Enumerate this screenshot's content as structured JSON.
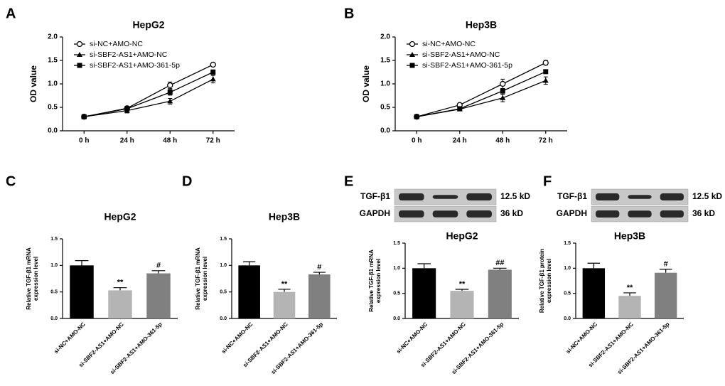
{
  "chart_data": [
    {
      "type": "line",
      "panel": "A",
      "title": "HepG2",
      "ylabel": [
        "OD value"
      ],
      "categories": [
        "0 h",
        "24 h",
        "48 h",
        "72 h"
      ],
      "ylim": [
        0,
        2
      ],
      "yticks": [
        {
          "value": 0,
          "label": "0.0"
        },
        {
          "value": 0.5,
          "label": "0.5"
        },
        {
          "value": 1,
          "label": "1.0"
        },
        {
          "value": 1.5,
          "label": "1.5"
        },
        {
          "value": 2,
          "label": "2.0"
        }
      ],
      "series": [
        {
          "name": "si-NC+AMO-NC",
          "marker": "open-circle",
          "color": "#000000",
          "values": [
            0.3,
            0.48,
            0.97,
            1.41
          ],
          "errors": [
            0.02,
            0.04,
            0.07,
            0.03
          ]
        },
        {
          "name": "si-SBF2-AS1+AMO-NC",
          "marker": "triangle",
          "color": "#000000",
          "values": [
            0.3,
            0.43,
            0.63,
            1.1
          ],
          "errors": [
            0.02,
            0.05,
            0.06,
            0.08
          ]
        },
        {
          "name": "si-SBF2-AS1+AMO-361-5p",
          "marker": "square",
          "color": "#000000",
          "values": [
            0.3,
            0.47,
            0.82,
            1.25
          ],
          "errors": [
            0.02,
            0.03,
            0.06,
            0.05
          ]
        }
      ]
    },
    {
      "type": "line",
      "panel": "B",
      "title": "Hep3B",
      "ylabel": [
        "OD value"
      ],
      "categories": [
        "0 h",
        "24 h",
        "48 h",
        "72 h"
      ],
      "ylim": [
        0,
        2
      ],
      "yticks": [
        {
          "value": 0,
          "label": "0.0"
        },
        {
          "value": 0.5,
          "label": "0.5"
        },
        {
          "value": 1,
          "label": "1.0"
        },
        {
          "value": 1.5,
          "label": "1.5"
        },
        {
          "value": 2,
          "label": "2.0"
        }
      ],
      "series": [
        {
          "name": "si-NC+AMO-NC",
          "marker": "open-circle",
          "color": "#000000",
          "values": [
            0.3,
            0.55,
            1.0,
            1.45
          ],
          "errors": [
            0.01,
            0.03,
            0.1,
            0.05
          ]
        },
        {
          "name": "si-SBF2-AS1+AMO-NC",
          "marker": "triangle",
          "color": "#000000",
          "values": [
            0.3,
            0.46,
            0.7,
            1.07
          ],
          "errors": [
            0.01,
            0.03,
            0.08,
            0.08
          ]
        },
        {
          "name": "si-SBF2-AS1+AMO-361-5p",
          "marker": "square",
          "color": "#000000",
          "values": [
            0.3,
            0.47,
            0.85,
            1.26
          ],
          "errors": [
            0.01,
            0.02,
            0.05,
            0.03
          ]
        }
      ]
    },
    {
      "type": "bar",
      "panel": "C",
      "title": "HepG2",
      "ylabel": [
        "Relative TGF-β1 mRNA",
        "expression level"
      ],
      "categories": [
        "si-NC+AMO-NC",
        "si-SBF2-AS1+AMO-NC",
        "si-SBF2-AS1+AMO-361-5p"
      ],
      "colors": [
        "#000000",
        "#b4b4b4",
        "#808080"
      ],
      "values": [
        1.0,
        0.53,
        0.85
      ],
      "errors": [
        0.09,
        0.05,
        0.05
      ],
      "annotations": [
        null,
        "**",
        "#"
      ],
      "ylim": [
        0,
        1.5
      ],
      "yticks": [
        {
          "value": 0,
          "label": "0.0"
        },
        {
          "value": 0.5,
          "label": "0.5"
        },
        {
          "value": 1,
          "label": "1.0"
        },
        {
          "value": 1.5,
          "label": "1.5"
        }
      ]
    },
    {
      "type": "bar",
      "panel": "D",
      "title": "Hep3B",
      "ylabel": [
        "Relative TGF-β1 mRNA",
        "expression level"
      ],
      "categories": [
        "si-NC+AMO-NC",
        "si-SBF2-AS1+AMO-NC",
        "si-SBF2-AS1+AMO-361-5p"
      ],
      "colors": [
        "#000000",
        "#b4b4b4",
        "#808080"
      ],
      "values": [
        1.0,
        0.5,
        0.83
      ],
      "errors": [
        0.07,
        0.05,
        0.04
      ],
      "annotations": [
        null,
        "**",
        "#"
      ],
      "ylim": [
        0,
        1.5
      ],
      "yticks": [
        {
          "value": 0,
          "label": "0.0"
        },
        {
          "value": 0.5,
          "label": "0.5"
        },
        {
          "value": 1,
          "label": "1.0"
        },
        {
          "value": 1.5,
          "label": "1.5"
        }
      ]
    },
    {
      "type": "bar",
      "panel": "E",
      "title": "HepG2",
      "ylabel": [
        "Relative TGF-β1 mRNA",
        "expression level"
      ],
      "categories": [
        "si-NC+AMO-NC",
        "si-SBF2-AS1+AMO-NC",
        "si-SBF2-AS1+AMO-361-5p"
      ],
      "colors": [
        "#000000",
        "#b4b4b4",
        "#808080"
      ],
      "values": [
        1.0,
        0.55,
        0.97
      ],
      "errors": [
        0.09,
        0.03,
        0.03
      ],
      "annotations": [
        null,
        "**",
        "##"
      ],
      "ylim": [
        0,
        1.5
      ],
      "yticks": [
        {
          "value": 0,
          "label": "0.0"
        },
        {
          "value": 0.5,
          "label": "0.5"
        },
        {
          "value": 1,
          "label": "1.0"
        },
        {
          "value": 1.5,
          "label": "1.5"
        }
      ],
      "blot": {
        "rows": [
          {
            "label": "TGF-β1",
            "size": "12.5 kD"
          },
          {
            "label": "GAPDH",
            "size": "36 kD"
          }
        ]
      }
    },
    {
      "type": "bar",
      "panel": "F",
      "title": "Hep3B",
      "ylabel": [
        "Relative TGF-β1 protein",
        "expression level"
      ],
      "categories": [
        "si-NC+AMO-NC",
        "si-SBF2-AS1+AMO-NC",
        "si-SBF2-AS1+AMO-361-5p"
      ],
      "colors": [
        "#000000",
        "#b4b4b4",
        "#808080"
      ],
      "values": [
        1.0,
        0.45,
        0.91
      ],
      "errors": [
        0.1,
        0.06,
        0.07
      ],
      "annotations": [
        null,
        "**",
        "#"
      ],
      "ylim": [
        0,
        1.5
      ],
      "yticks": [
        {
          "value": 0,
          "label": "0.0"
        },
        {
          "value": 0.5,
          "label": "0.5"
        },
        {
          "value": 1,
          "label": "1.0"
        },
        {
          "value": 1.5,
          "label": "1.5"
        }
      ],
      "blot": {
        "rows": [
          {
            "label": "TGF-β1",
            "size": "12.5 kD"
          },
          {
            "label": "GAPDH",
            "size": "36 kD"
          }
        ]
      }
    }
  ]
}
